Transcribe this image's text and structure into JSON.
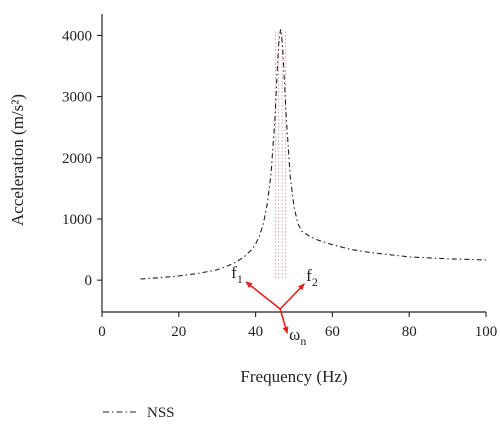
{
  "chart_data": {
    "type": "line",
    "xlabel": "Frequency (Hz)",
    "ylabel": "Acceleration (m/s²)",
    "xlim": [
      0,
      100
    ],
    "ylim": [
      -520,
      4350
    ],
    "xticks": [
      0,
      20,
      40,
      60,
      80,
      100
    ],
    "yticks": [
      0,
      1000,
      2000,
      3000,
      4000
    ],
    "grid": false,
    "legend_position": "bottom-left, below plot",
    "series": [
      {
        "name": "NSS",
        "style": "dash-dot",
        "color": "#222222",
        "x": [
          10,
          15,
          20,
          25,
          30,
          33,
          35,
          37,
          39,
          40,
          41,
          42,
          43,
          44,
          45,
          45.5,
          46,
          46.5,
          47,
          47.5,
          48,
          49,
          50,
          51,
          52,
          54,
          56,
          60,
          65,
          70,
          80,
          90,
          100
        ],
        "y": [
          20,
          40,
          70,
          110,
          170,
          240,
          300,
          380,
          500,
          590,
          720,
          920,
          1230,
          1730,
          2600,
          3250,
          3850,
          4100,
          3850,
          3250,
          2650,
          1700,
          1200,
          930,
          800,
          720,
          660,
          580,
          500,
          450,
          380,
          350,
          330
        ]
      }
    ],
    "annotations": [
      {
        "label": "f",
        "subscript": "1",
        "x": 46,
        "color": "#e32020"
      },
      {
        "label": "f",
        "subscript": "2",
        "x": 47.8,
        "color": "#e32020"
      },
      {
        "label": "ω",
        "subscript": "n",
        "x": 46.9,
        "color": "#e32020"
      }
    ],
    "marker_lines": {
      "x": [
        45.2,
        46,
        46.9,
        47.8
      ],
      "color": "#d99a9a"
    }
  }
}
